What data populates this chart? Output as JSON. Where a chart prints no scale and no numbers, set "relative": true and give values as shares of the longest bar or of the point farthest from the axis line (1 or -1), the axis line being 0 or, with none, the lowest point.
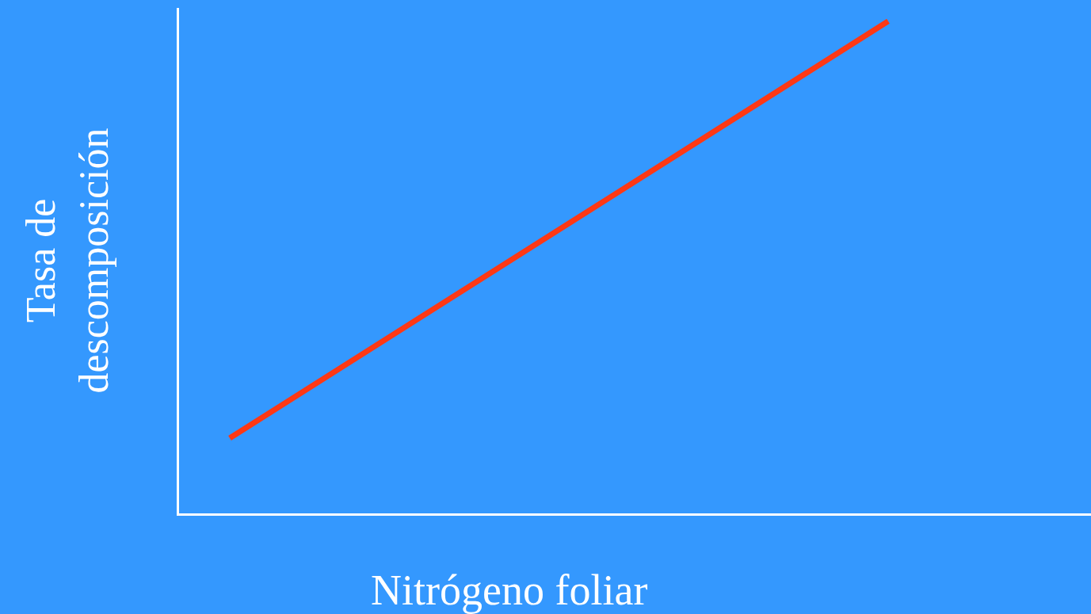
{
  "chart_data": {
    "type": "line",
    "relative": true,
    "xlabel": "Nitrógeno foliar",
    "ylabel": "Tasa de descomposición",
    "categories": [
      null,
      null
    ],
    "series": [
      {
        "color": "#ff3814",
        "values": [
          0.153,
          1
        ]
      }
    ],
    "legend": false,
    "marker": "none",
    "line_style": "solid"
  }
}
